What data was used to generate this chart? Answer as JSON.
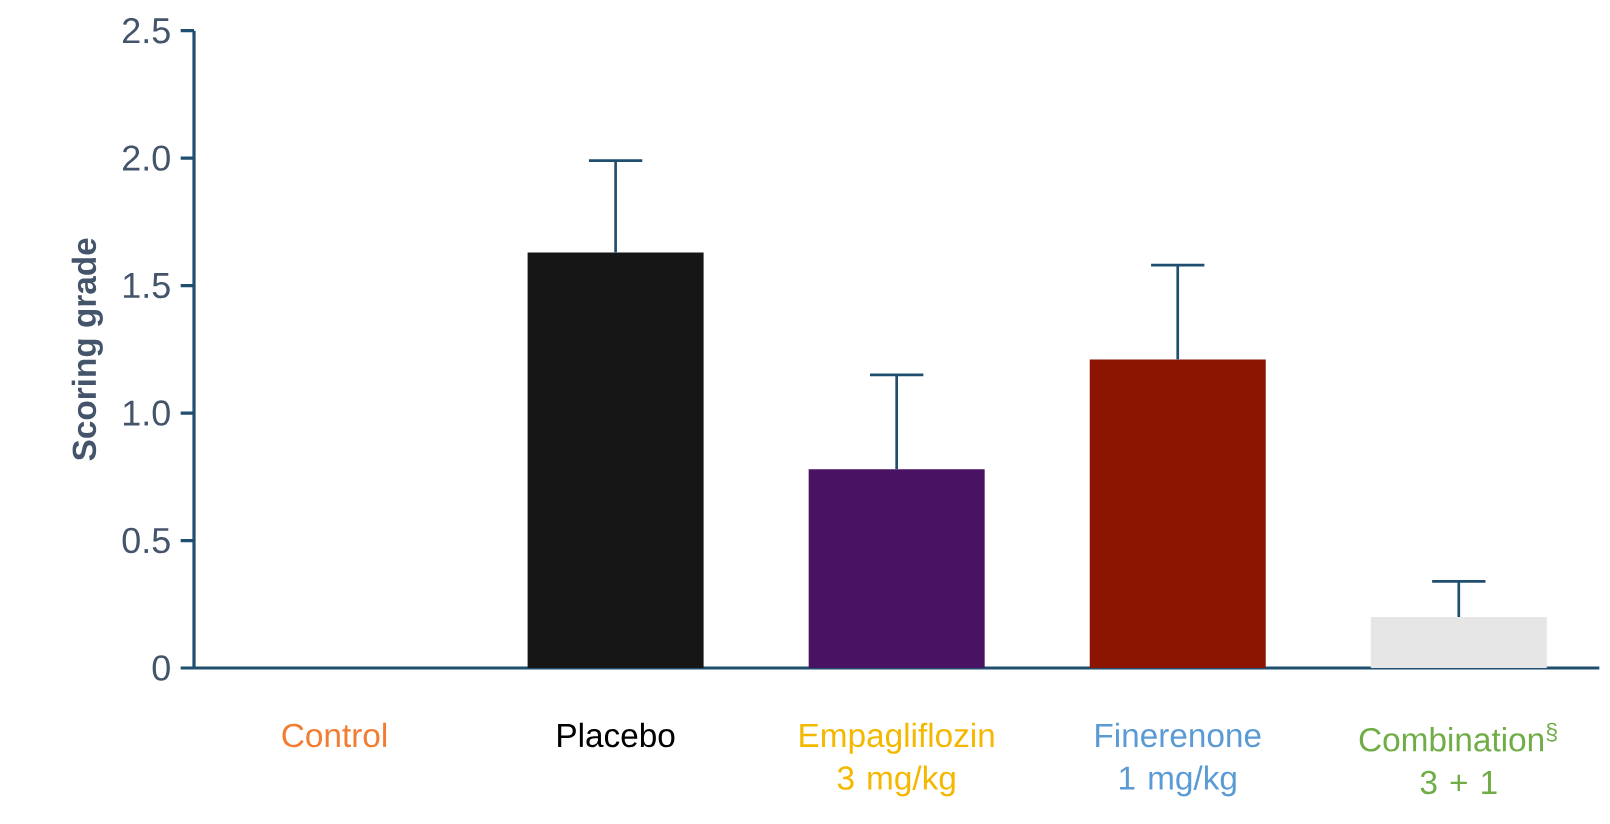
{
  "chart_data": {
    "type": "bar",
    "ylabel": "Scoring grade",
    "categories": [
      "Control",
      "Placebo",
      "Empagliflozin 3 mg/kg",
      "Finerenone 1 mg/kg",
      "Combination$^{§}$ 3 + 1"
    ],
    "values": [
      0,
      1.63,
      0.78,
      1.21,
      0.2
    ],
    "colors": [
      "#f07d32",
      "#161616",
      "#4a1262",
      "#8b1500",
      "#e6e6e6"
    ],
    "errors": [
      null,
      0.36,
      0.37,
      0.37,
      0.14
    ],
    "ylim": [
      0,
      2.5
    ],
    "yticks": [
      0,
      0.5,
      {
        "value": 1,
        "label": "1.0"
      },
      1.5,
      {
        "value": 2,
        "label": "2.0"
      },
      2.5
    ],
    "grid": false
  }
}
